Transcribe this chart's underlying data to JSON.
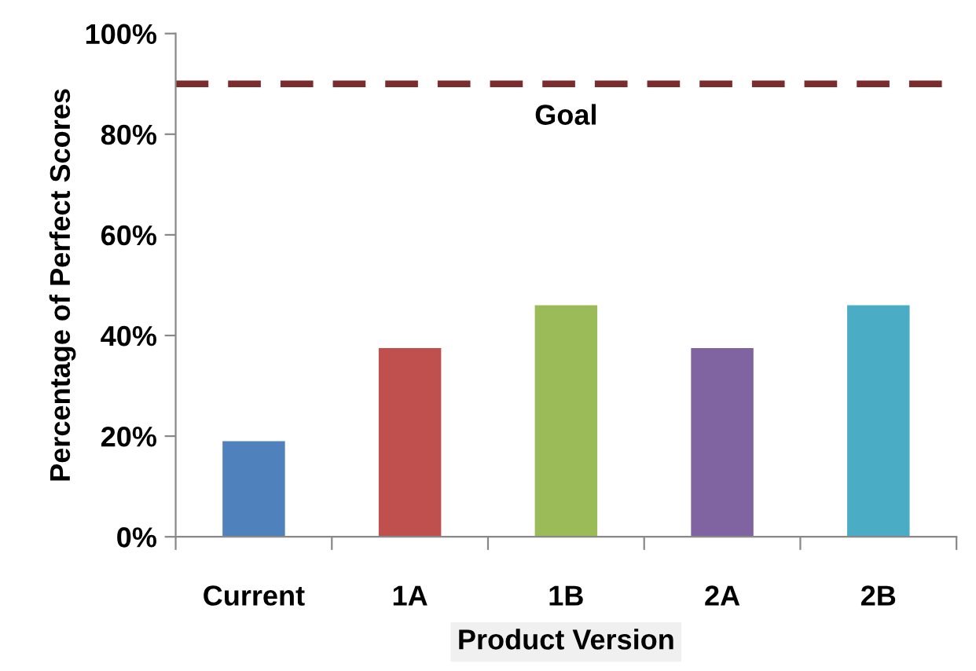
{
  "chart_data": {
    "type": "bar",
    "xlabel": "Product Version",
    "ylabel": "Percentage of Perfect Scores",
    "categories": [
      "Current",
      "1A",
      "1B",
      "2A",
      "2B"
    ],
    "values": [
      19,
      37.5,
      46,
      37.5,
      46
    ],
    "colors": [
      "#4f81bd",
      "#c0504d",
      "#9bbb59",
      "#8064a2",
      "#4bacc6"
    ],
    "ylim": [
      0,
      100
    ],
    "yticks": [
      {
        "value": 0,
        "label": "0%"
      },
      {
        "value": 20,
        "label": "20%"
      },
      {
        "value": 40,
        "label": "40%"
      },
      {
        "value": 60,
        "label": "60%"
      },
      {
        "value": 80,
        "label": "80%"
      },
      {
        "value": 100,
        "label": "100%"
      }
    ],
    "ref_lines": [
      {
        "axis": "y",
        "value": 90,
        "label": "Goal",
        "color": "#7b2c2c",
        "line_style": "dashed"
      }
    ],
    "grid": false,
    "legend": false
  }
}
